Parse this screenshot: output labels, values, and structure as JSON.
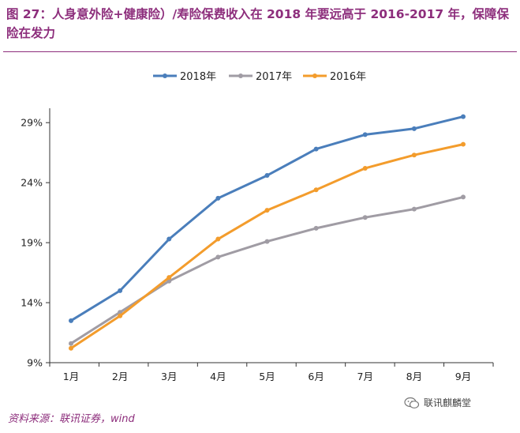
{
  "header": {
    "title": "图 27：人身意外险+健康险）/寿险保费收入在 2018 年要远高于 2016-2017 年，保障保险在发力"
  },
  "footer": {
    "source": "资料来源：联讯证券，wind",
    "watermark": "联讯麒麟堂",
    "watermark_icon": "wechat-icon"
  },
  "colors": {
    "title": "#8d2e7c",
    "s2018": "#4a7ebb",
    "s2017": "#a09ca4",
    "s2016": "#f39c2c"
  },
  "chart_data": {
    "type": "line",
    "title": "",
    "xlabel": "",
    "ylabel": "",
    "categories": [
      "1月",
      "2月",
      "3月",
      "4月",
      "5月",
      "6月",
      "7月",
      "8月",
      "9月"
    ],
    "yticks": [
      "9%",
      "14%",
      "19%",
      "24%",
      "29%"
    ],
    "ylim": [
      9,
      30.2
    ],
    "grid": false,
    "legend": "top-center",
    "series": [
      {
        "name": "2018年",
        "color": "#4a7ebb",
        "values": [
          12.5,
          15.0,
          19.3,
          22.7,
          24.6,
          26.8,
          28.0,
          28.5,
          29.5
        ]
      },
      {
        "name": "2017年",
        "color": "#a09ca4",
        "values": [
          10.6,
          13.2,
          15.8,
          17.8,
          19.1,
          20.2,
          21.1,
          21.8,
          22.8
        ]
      },
      {
        "name": "2016年",
        "color": "#f39c2c",
        "values": [
          10.2,
          12.9,
          16.1,
          19.3,
          21.7,
          23.4,
          25.2,
          26.3,
          27.2
        ]
      }
    ]
  }
}
